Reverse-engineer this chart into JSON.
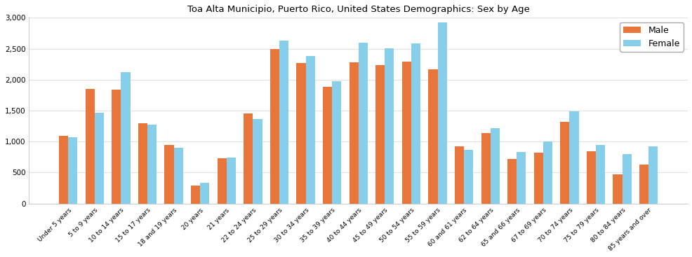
{
  "title": "Toa Alta Municipio, Puerto Rico, United States Demographics: Sex by Age",
  "categories": [
    "Under 5 years",
    "5 to 9 years",
    "10 to 14 years",
    "15 to 17 years",
    "18 and 19 years",
    "20 years",
    "21 years",
    "22 to 24 years",
    "25 to 29 years",
    "30 to 34 years",
    "35 to 39 years",
    "40 to 44 years",
    "45 to 49 years",
    "50 to 54 years",
    "55 to 59 years",
    "60 and 61 years",
    "62 to 64 years",
    "65 and 66 years",
    "67 to 69 years",
    "70 to 74 years",
    "75 to 79 years",
    "80 to 84 years",
    "85 years and over"
  ],
  "male": [
    1090,
    1850,
    1840,
    1300,
    950,
    290,
    730,
    1450,
    2490,
    2270,
    1880,
    2280,
    2230,
    2290,
    2170,
    920,
    1140,
    720,
    820,
    1320,
    840,
    475,
    625
  ],
  "female": [
    1070,
    1470,
    2120,
    1270,
    900,
    340,
    740,
    1360,
    2630,
    2380,
    1980,
    2600,
    2510,
    2580,
    2920,
    870,
    1220,
    830,
    1000,
    1490,
    950,
    800,
    920
  ],
  "male_color": "#E8763A",
  "female_color": "#87CEEB",
  "ylim": [
    0,
    3000
  ],
  "yticks": [
    0,
    500,
    1000,
    1500,
    2000,
    2500,
    3000
  ],
  "background_color": "#ffffff",
  "title_fontsize": 9.5,
  "bar_width": 0.35,
  "tick_fontsize": 6.5,
  "legend_fontsize": 9
}
